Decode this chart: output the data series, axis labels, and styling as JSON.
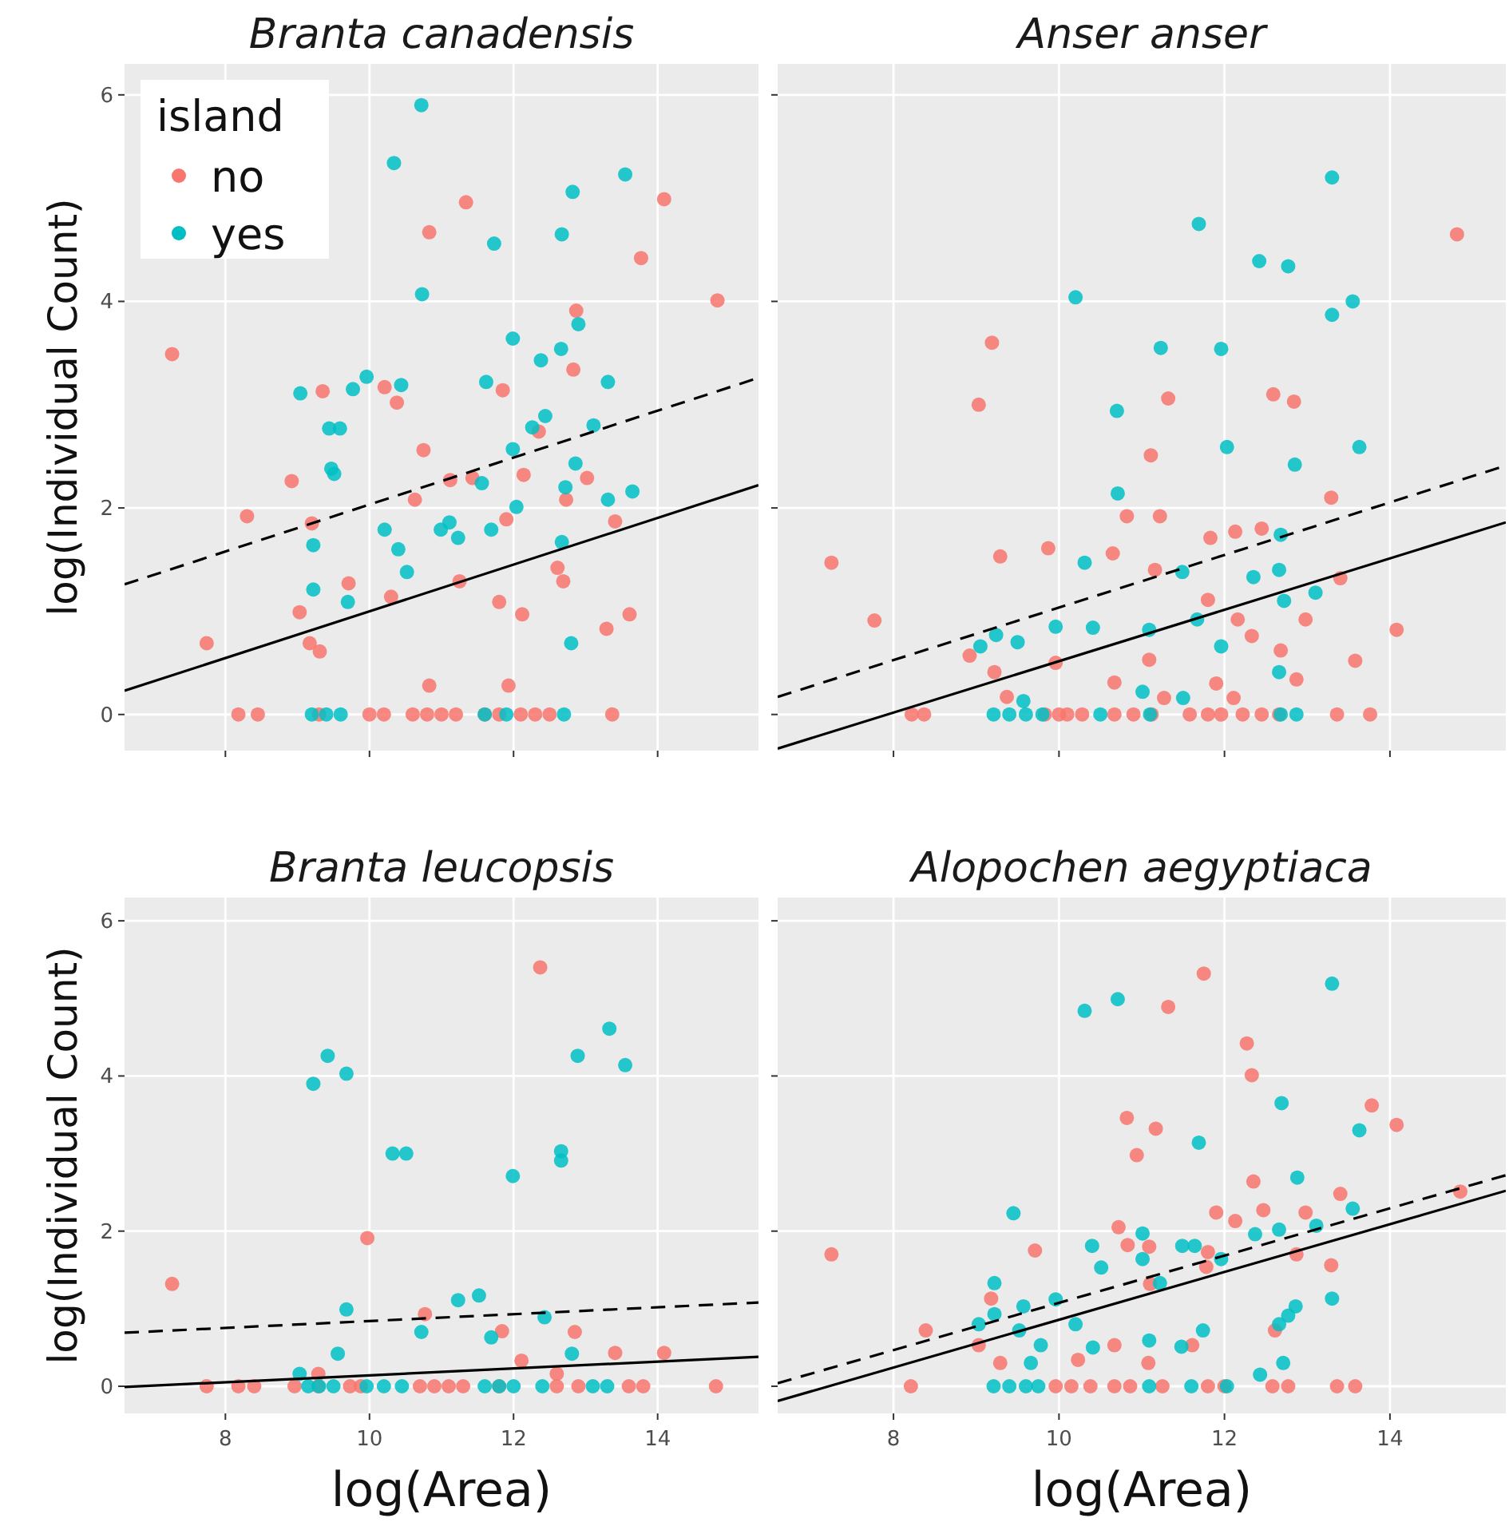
{
  "chart_data": [
    {
      "type": "scatter",
      "title": "Branta canadensis",
      "ylabel": "log(Individual Count)",
      "legend_title": "island",
      "legend": "top left",
      "grid": true,
      "marker": "circle",
      "tick_labels": "y",
      "xlim": [
        6.6,
        15.4
      ],
      "ylim": [
        -0.35,
        6.3
      ],
      "xticks": [
        8,
        10,
        12,
        14
      ],
      "yticks": [
        0,
        2,
        4,
        6
      ],
      "series": [
        {
          "name": "no",
          "color": "#f8766d",
          "x": [
            7.26,
            7.74,
            8.3,
            8.92,
            9.03,
            9.17,
            9.31,
            9.35,
            9.2,
            9.71,
            10.21,
            10.38,
            10.3,
            10.63,
            10.75,
            10.83,
            10.83,
            11.12,
            11.25,
            11.34,
            11.43,
            11.8,
            11.85,
            11.93,
            11.9,
            12.12,
            12.14,
            12.35,
            12.61,
            12.69,
            12.73,
            12.83,
            12.87,
            13.02,
            13.29,
            13.41,
            13.61,
            13.77,
            14.09,
            14.83,
            8.18,
            8.45,
            9.3,
            10.0,
            10.2,
            10.6,
            10.8,
            11.0,
            11.2,
            11.6,
            11.8,
            12.1,
            12.3,
            12.5,
            13.37
          ],
          "values": [
            3.49,
            0.69,
            1.92,
            2.26,
            0.99,
            0.69,
            0.61,
            3.13,
            1.85,
            1.27,
            3.17,
            3.02,
            1.14,
            2.08,
            2.56,
            4.67,
            0.28,
            2.27,
            1.29,
            4.96,
            2.29,
            1.09,
            3.14,
            0.28,
            1.89,
            0.97,
            2.32,
            2.74,
            1.42,
            1.29,
            2.08,
            3.34,
            3.91,
            2.29,
            0.83,
            1.87,
            0.97,
            4.42,
            4.99,
            4.01,
            0,
            0,
            0,
            0,
            0,
            0,
            0,
            0,
            0,
            0,
            0,
            0,
            0,
            0,
            0
          ]
        },
        {
          "name": "yes",
          "color": "#00bfc4",
          "x": [
            10.72,
            10.34,
            10.73,
            11.73,
            12.67,
            12.82,
            13.55,
            9.04,
            9.44,
            9.59,
            9.47,
            9.51,
            9.77,
            9.96,
            10.44,
            9.22,
            9.22,
            9.7,
            10.21,
            10.4,
            10.52,
            10.99,
            11.11,
            11.23,
            11.62,
            11.56,
            11.69,
            11.99,
            11.99,
            12.04,
            12.26,
            12.38,
            12.44,
            12.66,
            12.72,
            12.67,
            12.86,
            12.9,
            12.8,
            13.11,
            13.31,
            13.31,
            13.65,
            9.2,
            9.4,
            9.6,
            11.6,
            11.9,
            12.7
          ],
          "values": [
            5.9,
            5.34,
            4.07,
            4.56,
            4.65,
            5.06,
            5.23,
            3.11,
            2.77,
            2.77,
            2.38,
            2.33,
            3.15,
            3.27,
            3.19,
            1.64,
            1.21,
            1.09,
            1.79,
            1.6,
            1.38,
            1.79,
            1.86,
            1.71,
            3.22,
            2.24,
            1.79,
            3.64,
            2.57,
            2.01,
            2.78,
            3.43,
            2.89,
            3.54,
            2.2,
            1.67,
            2.43,
            3.78,
            0.69,
            2.8,
            3.22,
            2.08,
            2.16,
            0,
            0,
            0,
            0,
            0,
            0
          ]
        },
        {
          "type": "line",
          "marker": "none",
          "color": "#000000",
          "line_style": "solid",
          "x": [
            6.6,
            15.4
          ],
          "values": [
            0.23,
            2.22
          ]
        },
        {
          "type": "line",
          "marker": "none",
          "color": "#000000",
          "line_style": "dashed",
          "x": [
            6.6,
            15.4
          ],
          "values": [
            1.26,
            3.26
          ]
        }
      ]
    },
    {
      "type": "scatter",
      "title": "Anser anser",
      "grid": true,
      "marker": "circle",
      "tick_labels": false,
      "xlim": [
        6.6,
        15.4
      ],
      "ylim": [
        -0.35,
        6.3
      ],
      "xticks": [
        8,
        10,
        12,
        14
      ],
      "yticks": [
        0,
        2,
        4,
        6
      ],
      "series": [
        {
          "color": "#f8766d",
          "x": [
            7.25,
            7.77,
            9.19,
            9.03,
            9.29,
            8.92,
            9.22,
            9.37,
            9.87,
            9.96,
            10.65,
            10.67,
            10.82,
            11.11,
            11.16,
            11.22,
            11.32,
            11.09,
            11.27,
            11.8,
            11.83,
            11.9,
            12.11,
            12.13,
            12.16,
            12.33,
            12.45,
            12.59,
            12.84,
            12.68,
            12.87,
            12.98,
            13.29,
            13.4,
            13.58,
            14.08,
            14.81,
            8.22,
            8.37,
            9.83,
            10.0,
            10.1,
            10.28,
            10.67,
            10.9,
            11.12,
            11.58,
            11.8,
            11.96,
            12.22,
            12.45,
            12.66,
            13.36,
            13.76
          ],
          "values": [
            1.47,
            0.91,
            3.6,
            3.0,
            1.53,
            0.57,
            0.41,
            0.17,
            1.61,
            0.5,
            1.56,
            0.31,
            1.92,
            2.51,
            1.4,
            1.92,
            3.06,
            0.53,
            0.16,
            1.11,
            1.71,
            0.3,
            0.16,
            1.77,
            0.92,
            0.76,
            1.8,
            3.1,
            3.03,
            0.62,
            0.34,
            0.92,
            2.1,
            1.32,
            0.52,
            0.82,
            4.65,
            0,
            0,
            0,
            0,
            0,
            0,
            0,
            0,
            0,
            0,
            0,
            0,
            0,
            0,
            0,
            0,
            0
          ]
        },
        {
          "color": "#00bfc4",
          "x": [
            13.3,
            11.69,
            12.42,
            12.77,
            10.2,
            13.3,
            13.55,
            11.23,
            11.96,
            10.7,
            12.03,
            13.63,
            12.85,
            10.71,
            12.68,
            10.31,
            11.49,
            12.35,
            12.66,
            12.72,
            13.1,
            11.67,
            11.09,
            10.41,
            9.96,
            9.5,
            9.24,
            9.05,
            11.96,
            12.66,
            11.01,
            11.5,
            9.57,
            9.21,
            9.4,
            9.6,
            9.8,
            10.5,
            12.87,
            11.1,
            12.68
          ],
          "values": [
            5.2,
            4.75,
            4.39,
            4.34,
            4.04,
            3.87,
            4.0,
            3.55,
            3.54,
            2.94,
            2.59,
            2.59,
            2.42,
            2.14,
            1.74,
            1.47,
            1.38,
            1.33,
            1.4,
            1.1,
            1.18,
            0.92,
            0.82,
            0.84,
            0.85,
            0.7,
            0.77,
            0.66,
            0.66,
            0.41,
            0.22,
            0.16,
            0.13,
            0,
            0,
            0,
            0,
            0,
            0,
            0,
            0
          ]
        },
        {
          "type": "line",
          "marker": "none",
          "color": "#000000",
          "line_style": "solid",
          "x": [
            6.6,
            15.4
          ],
          "values": [
            -0.33,
            1.86
          ]
        },
        {
          "type": "line",
          "marker": "none",
          "color": "#000000",
          "line_style": "dashed",
          "x": [
            6.6,
            15.4
          ],
          "values": [
            0.17,
            2.41
          ]
        }
      ]
    },
    {
      "type": "scatter",
      "title": "Branta leucopsis",
      "xlabel": "log(Area)",
      "ylabel": "log(Individual Count)",
      "grid": true,
      "marker": "circle",
      "xlim": [
        6.6,
        15.4
      ],
      "ylim": [
        -0.35,
        6.3
      ],
      "xticks": [
        8,
        10,
        12,
        14
      ],
      "yticks": [
        0,
        2,
        4,
        6
      ],
      "series": [
        {
          "color": "#f8766d",
          "x": [
            7.26,
            9.97,
            12.37,
            10.77,
            11.84,
            12.11,
            12.6,
            12.85,
            13.41,
            14.09,
            9.29,
            7.74,
            8.18,
            8.4,
            8.96,
            9.29,
            9.73,
            9.88,
            10.7,
            10.9,
            11.1,
            11.3,
            11.8,
            12.6,
            12.9,
            13.6,
            13.8,
            14.81
          ],
          "values": [
            1.32,
            1.91,
            5.4,
            0.93,
            0.71,
            0.33,
            0.16,
            0.7,
            0.43,
            0.43,
            0.16,
            0,
            0,
            0,
            0,
            0,
            0,
            0,
            0,
            0,
            0,
            0,
            0,
            0,
            0,
            0,
            0,
            0
          ]
        },
        {
          "color": "#00bfc4",
          "x": [
            9.22,
            9.42,
            9.68,
            10.32,
            10.51,
            11.99,
            12.66,
            12.66,
            12.89,
            13.33,
            13.55,
            9.68,
            9.56,
            10.72,
            11.23,
            11.52,
            11.69,
            12.43,
            12.81,
            9.03,
            9.15,
            9.3,
            9.5,
            9.96,
            10.2,
            10.45,
            11.6,
            11.8,
            12.0,
            12.4,
            13.1,
            13.3
          ],
          "values": [
            3.9,
            4.26,
            4.03,
            3.0,
            3.0,
            2.71,
            3.03,
            2.91,
            4.26,
            4.61,
            4.14,
            0.99,
            0.42,
            0.7,
            1.11,
            1.17,
            0.63,
            0.89,
            0.42,
            0.16,
            0,
            0,
            0,
            0,
            0,
            0,
            0,
            0,
            0,
            0,
            0,
            0
          ]
        },
        {
          "type": "line",
          "marker": "none",
          "color": "#000000",
          "line_style": "solid",
          "x": [
            6.6,
            15.4
          ],
          "values": [
            -0.01,
            0.38
          ]
        },
        {
          "type": "line",
          "marker": "none",
          "color": "#000000",
          "line_style": "dashed",
          "x": [
            6.6,
            15.4
          ],
          "values": [
            0.69,
            1.08
          ]
        }
      ]
    },
    {
      "type": "scatter",
      "title": "Alopochen aegyptiaca",
      "xlabel": "log(Area)",
      "grid": true,
      "marker": "circle",
      "tick_labels": "x",
      "xlim": [
        6.6,
        15.4
      ],
      "ylim": [
        -0.35,
        6.3
      ],
      "xticks": [
        8,
        10,
        12,
        14
      ],
      "yticks": [
        0,
        2,
        4,
        6
      ],
      "series": [
        {
          "color": "#f8766d",
          "x": [
            7.25,
            8.39,
            9.71,
            9.18,
            9.29,
            9.03,
            10.23,
            10.67,
            10.72,
            10.82,
            10.83,
            10.94,
            11.09,
            11.08,
            11.17,
            11.32,
            11.1,
            11.75,
            11.61,
            11.8,
            11.78,
            11.9,
            12.13,
            12.27,
            12.33,
            12.35,
            12.47,
            12.61,
            12.87,
            12.98,
            13.29,
            13.4,
            13.78,
            14.08,
            14.85,
            8.21,
            9.96,
            10.15,
            10.38,
            10.67,
            10.86,
            11.25,
            11.8,
            12.0,
            12.58,
            12.77,
            13.36,
            13.58
          ],
          "values": [
            1.7,
            0.72,
            1.75,
            1.13,
            0.3,
            0.53,
            0.34,
            0.53,
            2.05,
            3.46,
            1.82,
            2.98,
            1.8,
            0.3,
            3.32,
            4.89,
            1.32,
            5.32,
            0.53,
            1.73,
            1.54,
            2.24,
            2.13,
            4.42,
            4.01,
            2.64,
            2.27,
            0.72,
            1.7,
            2.24,
            1.56,
            2.48,
            3.62,
            3.37,
            2.51,
            0,
            0,
            0,
            0,
            0,
            0,
            0,
            0,
            0,
            0,
            0,
            0,
            0
          ]
        },
        {
          "color": "#00bfc4",
          "x": [
            13.3,
            10.71,
            10.31,
            12.69,
            11.69,
            13.63,
            12.88,
            13.55,
            9.45,
            10.4,
            11.01,
            11.49,
            11.64,
            10.51,
            11.01,
            11.22,
            11.96,
            12.37,
            12.66,
            13.11,
            9.22,
            9.22,
            9.03,
            9.57,
            9.96,
            9.52,
            10.2,
            9.78,
            9.66,
            10.41,
            11.09,
            11.48,
            11.74,
            12.86,
            12.77,
            12.66,
            13.3,
            12.43,
            12.71,
            9.21,
            9.4,
            9.6,
            9.75,
            11.09,
            11.6,
            12.03
          ],
          "values": [
            5.19,
            4.99,
            4.84,
            3.65,
            3.14,
            3.3,
            2.69,
            2.29,
            2.23,
            1.81,
            1.97,
            1.81,
            1.81,
            1.53,
            1.64,
            1.33,
            1.64,
            1.96,
            2.02,
            2.07,
            1.33,
            0.93,
            0.8,
            1.03,
            1.12,
            0.72,
            0.8,
            0.53,
            0.3,
            0.5,
            0.59,
            0.51,
            0.72,
            1.03,
            0.91,
            0.8,
            1.13,
            0.15,
            0.3,
            0,
            0,
            0,
            0,
            0,
            0,
            0
          ]
        },
        {
          "type": "line",
          "marker": "none",
          "color": "#000000",
          "line_style": "solid",
          "x": [
            6.6,
            15.4
          ],
          "values": [
            -0.19,
            2.52
          ]
        },
        {
          "type": "line",
          "marker": "none",
          "color": "#000000",
          "line_style": "dashed",
          "x": [
            6.6,
            15.4
          ],
          "values": [
            0.04,
            2.72
          ]
        }
      ]
    }
  ]
}
